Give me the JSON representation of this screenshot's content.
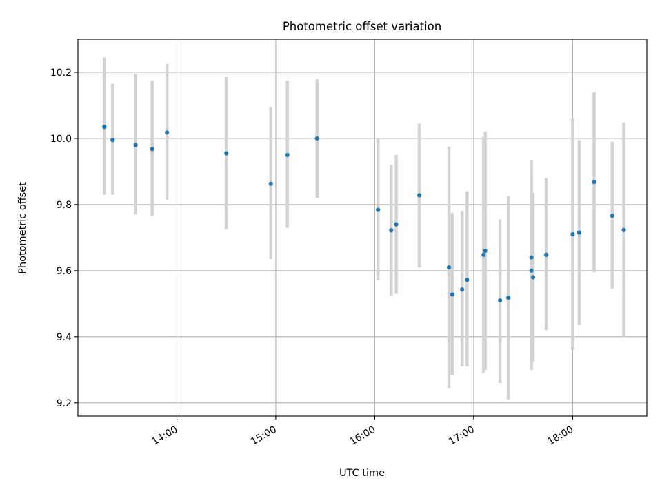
{
  "chart_data": {
    "type": "scatter",
    "title": "Photometric offset variation",
    "xlabel": "UTC time",
    "ylabel": "Photometric offset",
    "x_ticks": [
      "14:00",
      "15:00",
      "16:00",
      "17:00",
      "18:00"
    ],
    "y_ticks": [
      "9.2",
      "9.4",
      "9.6",
      "9.8",
      "10.0",
      "10.2"
    ],
    "xlim": [
      "13:00",
      "18:45"
    ],
    "ylim": [
      9.16,
      10.3
    ],
    "grid": true,
    "colors": {
      "points": "#1f77b4",
      "error_bars": "#d3d3d3",
      "grid": "#b0b0b0"
    },
    "series": [
      {
        "error_bars": true,
        "points": [
          {
            "x": "13:16",
            "y": 10.035,
            "ylow": 9.83,
            "yhigh": 10.245
          },
          {
            "x": "13:21",
            "y": 9.995,
            "ylow": 9.83,
            "yhigh": 10.165
          },
          {
            "x": "13:35",
            "y": 9.98,
            "ylow": 9.77,
            "yhigh": 10.195
          },
          {
            "x": "13:45",
            "y": 9.968,
            "ylow": 9.765,
            "yhigh": 10.175
          },
          {
            "x": "13:54",
            "y": 10.018,
            "ylow": 9.815,
            "yhigh": 10.225
          },
          {
            "x": "14:30",
            "y": 9.955,
            "ylow": 9.725,
            "yhigh": 10.185
          },
          {
            "x": "14:57",
            "y": 9.863,
            "ylow": 9.635,
            "yhigh": 10.095
          },
          {
            "x": "15:07",
            "y": 9.95,
            "ylow": 9.73,
            "yhigh": 10.175
          },
          {
            "x": "15:25",
            "y": 10.0,
            "ylow": 9.82,
            "yhigh": 10.18
          },
          {
            "x": "16:02",
            "y": 9.784,
            "ylow": 9.57,
            "yhigh": 10.0
          },
          {
            "x": "16:10",
            "y": 9.722,
            "ylow": 9.525,
            "yhigh": 9.92
          },
          {
            "x": "16:13",
            "y": 9.74,
            "ylow": 9.53,
            "yhigh": 9.95
          },
          {
            "x": "16:27",
            "y": 9.828,
            "ylow": 9.61,
            "yhigh": 10.045
          },
          {
            "x": "16:45",
            "y": 9.61,
            "ylow": 9.245,
            "yhigh": 9.975
          },
          {
            "x": "16:47",
            "y": 9.528,
            "ylow": 9.285,
            "yhigh": 9.775
          },
          {
            "x": "16:53",
            "y": 9.543,
            "ylow": 9.31,
            "yhigh": 9.78
          },
          {
            "x": "16:56",
            "y": 9.572,
            "ylow": 9.31,
            "yhigh": 9.84
          },
          {
            "x": "17:06",
            "y": 9.648,
            "ylow": 9.29,
            "yhigh": 10.005
          },
          {
            "x": "17:07",
            "y": 9.66,
            "ylow": 9.3,
            "yhigh": 10.02
          },
          {
            "x": "17:16",
            "y": 9.51,
            "ylow": 9.26,
            "yhigh": 9.755
          },
          {
            "x": "17:21",
            "y": 9.518,
            "ylow": 9.21,
            "yhigh": 9.825
          },
          {
            "x": "17:35",
            "y": 9.64,
            "ylow": 9.345,
            "yhigh": 9.935
          },
          {
            "x": "17:35",
            "y": 9.6,
            "ylow": 9.3,
            "yhigh": 9.9
          },
          {
            "x": "17:36",
            "y": 9.58,
            "ylow": 9.325,
            "yhigh": 9.835
          },
          {
            "x": "17:44",
            "y": 9.648,
            "ylow": 9.42,
            "yhigh": 9.88
          },
          {
            "x": "18:00",
            "y": 9.71,
            "ylow": 9.36,
            "yhigh": 10.06
          },
          {
            "x": "18:04",
            "y": 9.715,
            "ylow": 9.435,
            "yhigh": 9.995
          },
          {
            "x": "18:13",
            "y": 9.868,
            "ylow": 9.595,
            "yhigh": 10.14
          },
          {
            "x": "18:24",
            "y": 9.766,
            "ylow": 9.545,
            "yhigh": 9.99
          },
          {
            "x": "18:31",
            "y": 9.723,
            "ylow": 9.4,
            "yhigh": 10.048
          }
        ]
      }
    ]
  }
}
